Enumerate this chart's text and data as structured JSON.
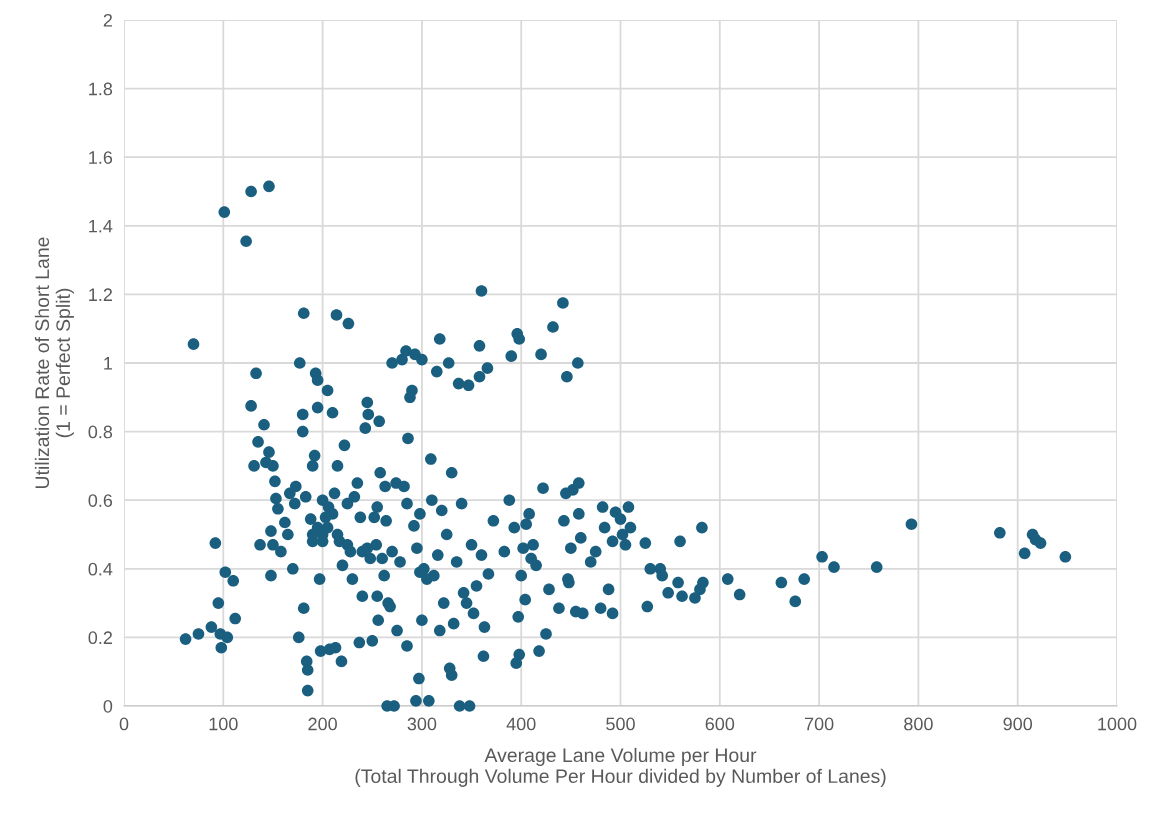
{
  "chart_data": {
    "type": "scatter",
    "xlabel": "Average Lane Volume per Hour\n(Total Through Volume Per Hour divided by Number of Lanes)",
    "ylabel": "Utilization Rate of Short Lane\n(1 = Perfect Split)",
    "xlim": [
      0,
      1000
    ],
    "xticks": [
      0,
      100,
      200,
      300,
      400,
      500,
      600,
      700,
      800,
      900,
      1000
    ],
    "ylim": [
      0,
      2
    ],
    "yticks": [
      0,
      0.2,
      0.4,
      0.6,
      0.8,
      1,
      1.2,
      1.4,
      1.6,
      1.8,
      2
    ],
    "grid": true,
    "marker": "circle",
    "series": [
      {
        "color": "#1a5f7f",
        "x": [
          62,
          75,
          88,
          92,
          95,
          97,
          98,
          102,
          104,
          110,
          112,
          70,
          101,
          123,
          128,
          146,
          128,
          131,
          133,
          135,
          137,
          141,
          143,
          146,
          148,
          148,
          150,
          150,
          152,
          153,
          155,
          158,
          162,
          165,
          167,
          170,
          172,
          173,
          176,
          177,
          180,
          180,
          181,
          181,
          183,
          184,
          185,
          185,
          188,
          190,
          190,
          192,
          193,
          195,
          195,
          197,
          198,
          200,
          200,
          203,
          205,
          206,
          207,
          210,
          212,
          213,
          214,
          215,
          217,
          219,
          220,
          222,
          225,
          226,
          228,
          230,
          232,
          235,
          237,
          238,
          240,
          240,
          243,
          245,
          246,
          248,
          250,
          252,
          254,
          255,
          256,
          257,
          258,
          260,
          262,
          263,
          264,
          265,
          266,
          268,
          270,
          272,
          274,
          275,
          278,
          280,
          282,
          284,
          285,
          286,
          288,
          290,
          292,
          293,
          294,
          295,
          297,
          298,
          300,
          300,
          302,
          305,
          307,
          309,
          310,
          312,
          315,
          316,
          318,
          318,
          320,
          322,
          325,
          327,
          328,
          330,
          330,
          332,
          335,
          337,
          338,
          340,
          342,
          345,
          347,
          348,
          350,
          352,
          355,
          358,
          358,
          360,
          360,
          362,
          363,
          366,
          367,
          372,
          383,
          388,
          390,
          393,
          395,
          396,
          397,
          398,
          398,
          400,
          402,
          404,
          405,
          408,
          410,
          412,
          415,
          418,
          420,
          422,
          425,
          428,
          432,
          438,
          442,
          443,
          445,
          446,
          447,
          448,
          450,
          452,
          455,
          457,
          458,
          458,
          460,
          462,
          470,
          475,
          480,
          482,
          484,
          488,
          492,
          492,
          495,
          500,
          502,
          505,
          508,
          510,
          525,
          527,
          530,
          540,
          542,
          548,
          558,
          560,
          562,
          575,
          580,
          582,
          583,
          608,
          620,
          662,
          676,
          685,
          703,
          715,
          758,
          793,
          882,
          907,
          915,
          918,
          923,
          948,
          195,
          205,
          210,
          215,
          190,
          200,
          225,
          245,
          255,
          270,
          285,
          298
        ],
        "values": [
          0.195,
          0.21,
          0.23,
          0.475,
          0.3,
          0.21,
          0.17,
          0.39,
          0.2,
          0.365,
          0.255,
          1.055,
          1.44,
          1.355,
          1.5,
          1.515,
          0.875,
          0.7,
          0.97,
          0.77,
          0.47,
          0.82,
          0.71,
          0.74,
          0.38,
          0.51,
          0.7,
          0.47,
          0.655,
          0.605,
          0.575,
          0.45,
          0.535,
          0.5,
          0.62,
          0.4,
          0.59,
          0.64,
          0.2,
          1.0,
          0.85,
          0.8,
          1.145,
          0.285,
          0.61,
          0.13,
          0.105,
          0.045,
          0.545,
          0.7,
          0.48,
          0.73,
          0.97,
          0.95,
          0.87,
          0.37,
          0.16,
          0.6,
          0.5,
          0.55,
          0.92,
          0.58,
          0.165,
          0.855,
          0.62,
          0.17,
          1.14,
          0.7,
          0.48,
          0.13,
          0.41,
          0.76,
          0.59,
          1.115,
          0.45,
          0.37,
          0.61,
          0.65,
          0.185,
          0.55,
          0.45,
          0.32,
          0.81,
          0.885,
          0.85,
          0.43,
          0.19,
          0.55,
          0.47,
          0.32,
          0.25,
          0.83,
          0.68,
          0.43,
          0.38,
          0.64,
          0.54,
          0.0,
          0.3,
          0.29,
          1.0,
          0.0,
          0.65,
          0.22,
          0.42,
          1.01,
          0.64,
          1.035,
          0.175,
          0.78,
          0.9,
          0.92,
          0.525,
          1.025,
          0.015,
          0.46,
          0.08,
          0.39,
          1.01,
          0.25,
          0.4,
          0.37,
          0.015,
          0.72,
          0.6,
          0.38,
          0.975,
          0.44,
          1.07,
          0.22,
          0.57,
          0.3,
          0.5,
          1.0,
          0.11,
          0.09,
          0.68,
          0.24,
          0.42,
          0.94,
          0.0,
          0.59,
          0.33,
          0.3,
          0.935,
          0.0,
          0.47,
          0.27,
          0.35,
          0.96,
          1.05,
          1.21,
          0.44,
          0.145,
          0.23,
          0.985,
          0.385,
          0.54,
          0.45,
          0.6,
          1.02,
          0.52,
          0.125,
          1.085,
          0.26,
          0.15,
          1.07,
          0.38,
          0.46,
          0.31,
          0.53,
          0.56,
          0.43,
          0.47,
          0.41,
          0.16,
          1.025,
          0.635,
          0.21,
          0.34,
          1.105,
          0.285,
          1.175,
          0.54,
          0.62,
          0.96,
          0.37,
          0.36,
          0.46,
          0.63,
          0.275,
          1.0,
          0.65,
          0.56,
          0.49,
          0.27,
          0.42,
          0.45,
          0.285,
          0.58,
          0.52,
          0.34,
          0.48,
          0.27,
          0.565,
          0.545,
          0.5,
          0.47,
          0.58,
          0.52,
          0.475,
          0.29,
          0.4,
          0.4,
          0.38,
          0.33,
          0.36,
          0.48,
          0.32,
          0.315,
          0.34,
          0.52,
          0.36,
          0.37,
          0.325,
          0.36,
          0.305,
          0.37,
          0.435,
          0.405,
          0.405,
          0.53,
          0.505,
          0.445,
          0.5,
          0.485,
          0.475,
          0.435,
          0.52,
          0.52,
          0.56,
          0.5,
          0.5,
          0.48,
          0.47,
          0.46,
          0.58,
          0.45,
          0.59,
          0.56
        ]
      }
    ]
  }
}
